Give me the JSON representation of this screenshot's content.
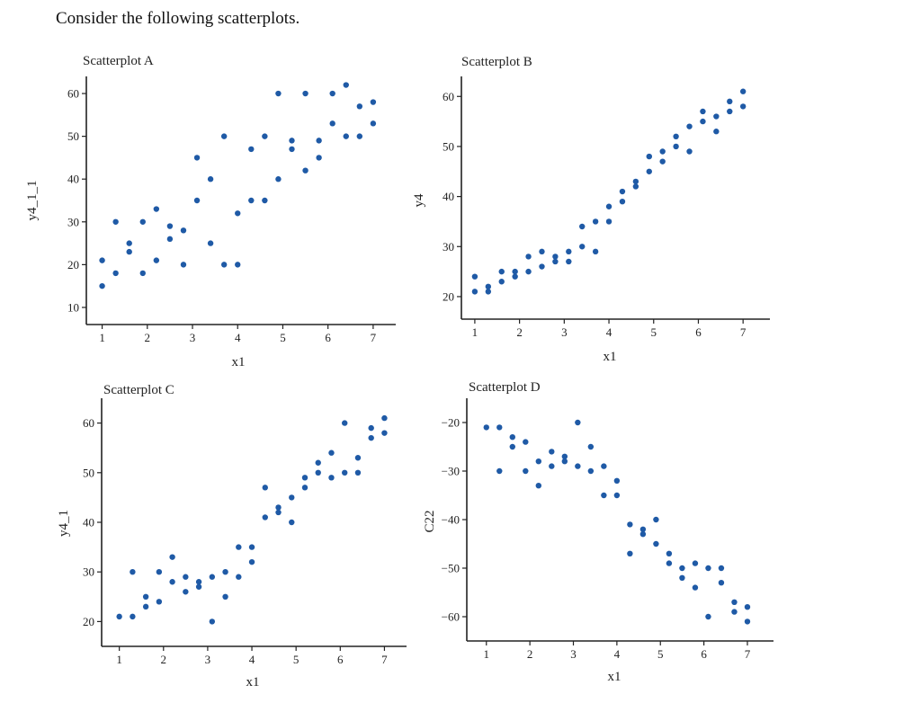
{
  "intro": "Consider the following scatterplots.",
  "colors": {
    "point": "#1f5aa6",
    "axis": "#222222"
  },
  "chart_data": [
    {
      "type": "scatter",
      "title": "Scatterplot A",
      "xlabel": "x1",
      "ylabel": "y4_1_1",
      "xlim": [
        0.65,
        7.5
      ],
      "ylim": [
        6,
        64
      ],
      "xticks": [
        1,
        2,
        3,
        4,
        5,
        6,
        7
      ],
      "yticks": [
        10,
        20,
        30,
        40,
        50,
        60
      ],
      "series": [
        {
          "x": [
            1,
            1.3,
            1.3,
            1,
            1.6,
            1.6,
            1.9,
            1.9,
            2.2,
            2.2,
            2.5,
            2.5,
            2.8,
            2.8,
            3.1,
            3.1,
            3.4,
            3.4,
            3.7,
            3.7,
            4,
            4,
            4.3,
            4.3,
            4.6,
            4.6,
            4.9,
            4.9,
            5.2,
            5.2,
            5.5,
            5.5,
            5.8,
            5.8,
            6.1,
            6.1,
            6.4,
            6.4,
            6.7,
            6.7,
            7,
            7
          ],
          "y": [
            21,
            18,
            30,
            15,
            25,
            23,
            30,
            18,
            33,
            21,
            29,
            26,
            28,
            20,
            45,
            35,
            40,
            25,
            50,
            20,
            32,
            20,
            47,
            35,
            50,
            35,
            60,
            40,
            49,
            47,
            60,
            42,
            49,
            45,
            60,
            53,
            62,
            50,
            57,
            50,
            58,
            53
          ]
        }
      ]
    },
    {
      "type": "scatter",
      "title": "Scatterplot B",
      "xlabel": "x1",
      "ylabel": "y4",
      "xlim": [
        0.7,
        7.6
      ],
      "ylim": [
        15.5,
        64
      ],
      "xticks": [
        1,
        2,
        3,
        4,
        5,
        6,
        7
      ],
      "yticks": [
        20,
        30,
        40,
        50,
        60
      ],
      "series": [
        {
          "x": [
            1,
            1,
            1.3,
            1.3,
            1.6,
            1.6,
            1.9,
            1.9,
            2.2,
            2.2,
            2.5,
            2.5,
            2.8,
            2.8,
            3.1,
            3.1,
            3.4,
            3.4,
            3.7,
            3.7,
            4,
            4,
            4.3,
            4.3,
            4.6,
            4.6,
            4.9,
            4.9,
            5.2,
            5.2,
            5.5,
            5.5,
            5.8,
            5.8,
            6.1,
            6.1,
            6.4,
            6.4,
            6.7,
            6.7,
            7,
            7
          ],
          "y": [
            24,
            21,
            22,
            21,
            25,
            23,
            25,
            24,
            28,
            25,
            29,
            26,
            28,
            27,
            29,
            27,
            34,
            30,
            35,
            29,
            38,
            35,
            41,
            39,
            43,
            42,
            48,
            45,
            49,
            47,
            52,
            50,
            54,
            49,
            57,
            55,
            56,
            53,
            59,
            57,
            61,
            58
          ]
        }
      ]
    },
    {
      "type": "scatter",
      "title": "Scatterplot C",
      "xlabel": "x1",
      "ylabel": "y4_1",
      "xlim": [
        0.6,
        7.5
      ],
      "ylim": [
        15,
        65
      ],
      "xticks": [
        1,
        2,
        3,
        4,
        5,
        6,
        7
      ],
      "yticks": [
        20,
        30,
        40,
        50,
        60
      ],
      "series": [
        {
          "x": [
            1,
            1.3,
            1.3,
            1.6,
            1.6,
            1.9,
            1.9,
            2.2,
            2.2,
            2.5,
            2.5,
            2.8,
            2.8,
            3.1,
            3.1,
            3.4,
            3.4,
            3.7,
            3.7,
            4,
            4,
            4.3,
            4.3,
            4.6,
            4.6,
            4.9,
            4.9,
            5.2,
            5.2,
            5.5,
            5.5,
            5.8,
            5.8,
            6.1,
            6.1,
            6.4,
            6.4,
            6.7,
            6.7,
            7,
            7
          ],
          "y": [
            21,
            30,
            21,
            25,
            23,
            30,
            24,
            33,
            28,
            29,
            26,
            28,
            27,
            29,
            20,
            30,
            25,
            35,
            29,
            35,
            32,
            47,
            41,
            43,
            42,
            45,
            40,
            49,
            47,
            52,
            50,
            54,
            49,
            60,
            50,
            53,
            50,
            59,
            57,
            61,
            58
          ]
        }
      ]
    },
    {
      "type": "scatter",
      "title": "Scatterplot D",
      "xlabel": "x1",
      "ylabel": "C22",
      "xlim": [
        0.55,
        7.6
      ],
      "ylim": [
        -65,
        -15
      ],
      "xticks": [
        1,
        2,
        3,
        4,
        5,
        6,
        7
      ],
      "yticks": [
        -20,
        -30,
        -40,
        -50,
        -60
      ],
      "series": [
        {
          "x": [
            1,
            1.3,
            1.3,
            1.6,
            1.6,
            1.9,
            1.9,
            2.2,
            2.2,
            2.5,
            2.5,
            2.8,
            2.8,
            3.1,
            3.1,
            3.4,
            3.4,
            3.7,
            3.7,
            4,
            4,
            4.3,
            4.3,
            4.6,
            4.6,
            4.9,
            4.9,
            5.2,
            5.2,
            5.5,
            5.5,
            5.8,
            5.8,
            6.1,
            6.1,
            6.4,
            6.4,
            6.7,
            6.7,
            7,
            7
          ],
          "y": [
            -21,
            -21,
            -30,
            -23,
            -25,
            -24,
            -30,
            -28,
            -33,
            -26,
            -29,
            -27,
            -28,
            -20,
            -29,
            -25,
            -30,
            -29,
            -35,
            -32,
            -35,
            -41,
            -47,
            -42,
            -43,
            -40,
            -45,
            -47,
            -49,
            -50,
            -52,
            -49,
            -54,
            -50,
            -60,
            -50,
            -53,
            -57,
            -59,
            -58,
            -61
          ]
        }
      ]
    }
  ]
}
